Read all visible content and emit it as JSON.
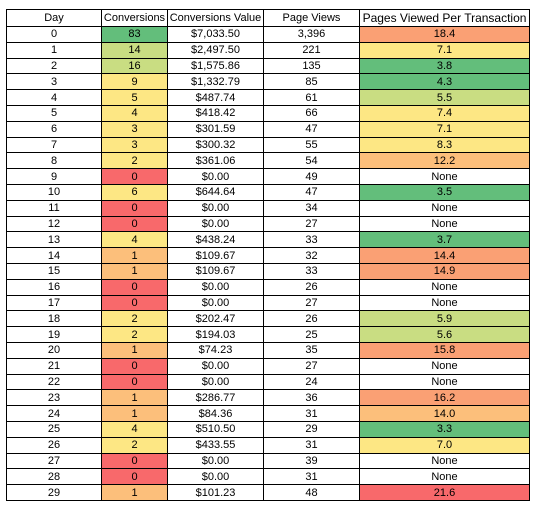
{
  "headers": [
    "Day",
    "Conversions",
    "Conversions Value",
    "Page Views",
    "Pages Viewed Per Transaction"
  ],
  "colors": {
    "dark_green": "#63be7b",
    "light_green": "#c9dd82",
    "yellow": "#fde784",
    "orange": "#fcbf7b",
    "salmon": "#faa074",
    "red": "#f8696b",
    "none": "#ffffff"
  },
  "rows": [
    {
      "day": "0",
      "conversions": "83",
      "value": "$7,033.50",
      "page_views": "3,396",
      "ppt": "18.4",
      "conv_color": "dark_green",
      "ppt_color": "salmon"
    },
    {
      "day": "1",
      "conversions": "14",
      "value": "$2,497.50",
      "page_views": "221",
      "ppt": "7.1",
      "conv_color": "light_green",
      "ppt_color": "yellow"
    },
    {
      "day": "2",
      "conversions": "16",
      "value": "$1,575.86",
      "page_views": "135",
      "ppt": "3.8",
      "conv_color": "light_green",
      "ppt_color": "dark_green"
    },
    {
      "day": "3",
      "conversions": "9",
      "value": "$1,332.79",
      "page_views": "85",
      "ppt": "4.3",
      "conv_color": "yellow",
      "ppt_color": "dark_green"
    },
    {
      "day": "4",
      "conversions": "5",
      "value": "$487.74",
      "page_views": "61",
      "ppt": "5.5",
      "conv_color": "yellow",
      "ppt_color": "light_green"
    },
    {
      "day": "5",
      "conversions": "4",
      "value": "$418.42",
      "page_views": "66",
      "ppt": "7.4",
      "conv_color": "yellow",
      "ppt_color": "yellow"
    },
    {
      "day": "6",
      "conversions": "3",
      "value": "$301.59",
      "page_views": "47",
      "ppt": "7.1",
      "conv_color": "yellow",
      "ppt_color": "yellow"
    },
    {
      "day": "7",
      "conversions": "3",
      "value": "$300.32",
      "page_views": "55",
      "ppt": "8.3",
      "conv_color": "yellow",
      "ppt_color": "yellow"
    },
    {
      "day": "8",
      "conversions": "2",
      "value": "$361.06",
      "page_views": "54",
      "ppt": "12.2",
      "conv_color": "yellow",
      "ppt_color": "orange"
    },
    {
      "day": "9",
      "conversions": "0",
      "value": "$0.00",
      "page_views": "49",
      "ppt": "None",
      "conv_color": "red",
      "ppt_color": "none"
    },
    {
      "day": "10",
      "conversions": "6",
      "value": "$644.64",
      "page_views": "47",
      "ppt": "3.5",
      "conv_color": "yellow",
      "ppt_color": "dark_green"
    },
    {
      "day": "11",
      "conversions": "0",
      "value": "$0.00",
      "page_views": "34",
      "ppt": "None",
      "conv_color": "red",
      "ppt_color": "none"
    },
    {
      "day": "12",
      "conversions": "0",
      "value": "$0.00",
      "page_views": "27",
      "ppt": "None",
      "conv_color": "red",
      "ppt_color": "none"
    },
    {
      "day": "13",
      "conversions": "4",
      "value": "$438.24",
      "page_views": "33",
      "ppt": "3.7",
      "conv_color": "yellow",
      "ppt_color": "dark_green"
    },
    {
      "day": "14",
      "conversions": "1",
      "value": "$109.67",
      "page_views": "32",
      "ppt": "14.4",
      "conv_color": "orange",
      "ppt_color": "salmon"
    },
    {
      "day": "15",
      "conversions": "1",
      "value": "$109.67",
      "page_views": "33",
      "ppt": "14.9",
      "conv_color": "orange",
      "ppt_color": "salmon"
    },
    {
      "day": "16",
      "conversions": "0",
      "value": "$0.00",
      "page_views": "26",
      "ppt": "None",
      "conv_color": "red",
      "ppt_color": "none"
    },
    {
      "day": "17",
      "conversions": "0",
      "value": "$0.00",
      "page_views": "27",
      "ppt": "None",
      "conv_color": "red",
      "ppt_color": "none"
    },
    {
      "day": "18",
      "conversions": "2",
      "value": "$202.47",
      "page_views": "26",
      "ppt": "5.9",
      "conv_color": "yellow",
      "ppt_color": "light_green"
    },
    {
      "day": "19",
      "conversions": "2",
      "value": "$194.03",
      "page_views": "25",
      "ppt": "5.6",
      "conv_color": "yellow",
      "ppt_color": "light_green"
    },
    {
      "day": "20",
      "conversions": "1",
      "value": "$74.23",
      "page_views": "35",
      "ppt": "15.8",
      "conv_color": "orange",
      "ppt_color": "salmon"
    },
    {
      "day": "21",
      "conversions": "0",
      "value": "$0.00",
      "page_views": "27",
      "ppt": "None",
      "conv_color": "red",
      "ppt_color": "none"
    },
    {
      "day": "22",
      "conversions": "0",
      "value": "$0.00",
      "page_views": "24",
      "ppt": "None",
      "conv_color": "red",
      "ppt_color": "none"
    },
    {
      "day": "23",
      "conversions": "1",
      "value": "$286.77",
      "page_views": "36",
      "ppt": "16.2",
      "conv_color": "orange",
      "ppt_color": "salmon"
    },
    {
      "day": "24",
      "conversions": "1",
      "value": "$84.36",
      "page_views": "31",
      "ppt": "14.0",
      "conv_color": "orange",
      "ppt_color": "orange"
    },
    {
      "day": "25",
      "conversions": "4",
      "value": "$510.50",
      "page_views": "29",
      "ppt": "3.3",
      "conv_color": "yellow",
      "ppt_color": "dark_green"
    },
    {
      "day": "26",
      "conversions": "2",
      "value": "$433.55",
      "page_views": "31",
      "ppt": "7.0",
      "conv_color": "yellow",
      "ppt_color": "yellow"
    },
    {
      "day": "27",
      "conversions": "0",
      "value": "$0.00",
      "page_views": "39",
      "ppt": "None",
      "conv_color": "red",
      "ppt_color": "none"
    },
    {
      "day": "28",
      "conversions": "0",
      "value": "$0.00",
      "page_views": "31",
      "ppt": "None",
      "conv_color": "red",
      "ppt_color": "none"
    },
    {
      "day": "29",
      "conversions": "1",
      "value": "$101.23",
      "page_views": "48",
      "ppt": "21.6",
      "conv_color": "orange",
      "ppt_color": "red"
    }
  ]
}
